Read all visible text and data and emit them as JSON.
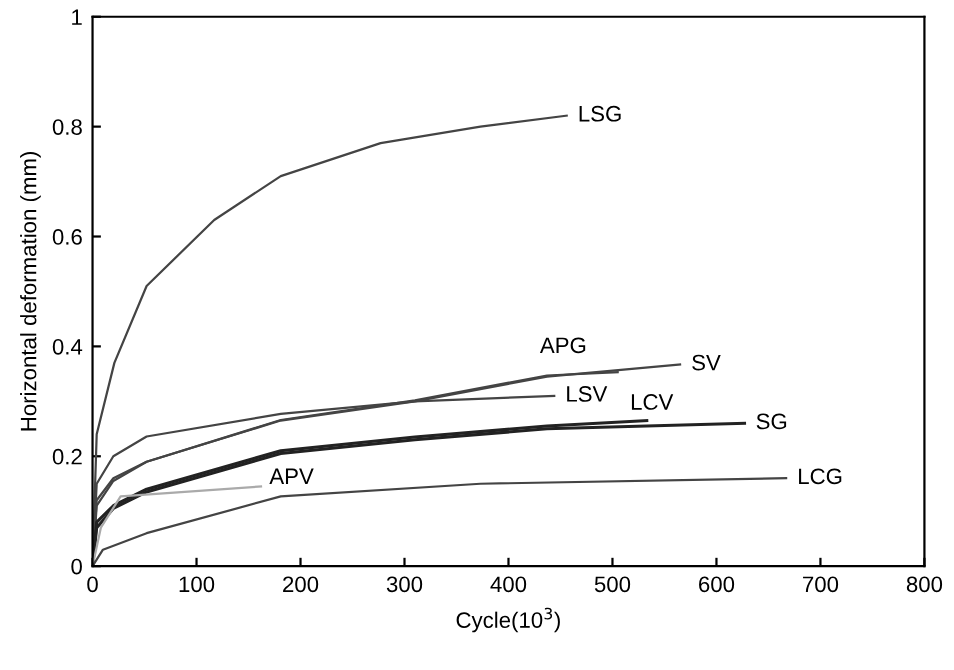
{
  "chart_data": {
    "type": "line",
    "xlabel": "Cycle(10$^{3}$)",
    "ylabel": "Horizontal deformation (mm)",
    "xlim": [
      0,
      800
    ],
    "ylim": [
      0,
      1
    ],
    "xticks": [
      0,
      100,
      200,
      300,
      400,
      500,
      600,
      700,
      800
    ],
    "yticks": [
      0,
      0.2,
      0.4,
      0.6,
      0.8,
      1
    ],
    "grid": false,
    "legend": false,
    "marker": "none",
    "line_style": "solid",
    "series": [
      {
        "name": "LSG",
        "color": "#444444",
        "x": [
          0,
          4,
          21,
          52,
          117,
          181,
          277,
          373,
          456
        ],
        "values": [
          0,
          0.24,
          0.37,
          0.51,
          0.63,
          0.71,
          0.77,
          0.8,
          0.82
        ]
      },
      {
        "name": "APG",
        "color": "#444444",
        "x": [
          0,
          4,
          20,
          52,
          181,
          310,
          437,
          505
        ],
        "values": [
          0,
          0.12,
          0.16,
          0.19,
          0.266,
          0.302,
          0.347,
          0.353
        ]
      },
      {
        "name": "SV",
        "color": "#444444",
        "x": [
          0,
          4,
          20,
          52,
          181,
          310,
          437,
          565
        ],
        "values": [
          0,
          0.11,
          0.155,
          0.19,
          0.265,
          0.3,
          0.345,
          0.367
        ]
      },
      {
        "name": "LSV",
        "color": "#444444",
        "x": [
          0,
          4,
          20,
          52,
          181,
          310,
          444
        ],
        "values": [
          0,
          0.15,
          0.2,
          0.236,
          0.277,
          0.3,
          0.31
        ]
      },
      {
        "name": "LCV",
        "color": "#222222",
        "x": [
          0,
          4,
          20,
          52,
          181,
          310,
          437,
          533
        ],
        "values": [
          0,
          0.08,
          0.11,
          0.14,
          0.21,
          0.235,
          0.255,
          0.265
        ]
      },
      {
        "name": "SG",
        "color": "#222222",
        "x": [
          0,
          4,
          20,
          52,
          181,
          310,
          437,
          627
        ],
        "values": [
          0,
          0.07,
          0.105,
          0.135,
          0.205,
          0.23,
          0.25,
          0.26
        ]
      },
      {
        "name": "APV",
        "color": "#aaaaaa",
        "x": [
          0,
          8,
          27,
          162
        ],
        "values": [
          0,
          0.07,
          0.127,
          0.145
        ]
      },
      {
        "name": "LCG",
        "color": "#444444",
        "x": [
          0,
          10,
          52,
          181,
          373,
          667
        ],
        "values": [
          0,
          0.03,
          0.06,
          0.127,
          0.15,
          0.16
        ]
      }
    ]
  }
}
